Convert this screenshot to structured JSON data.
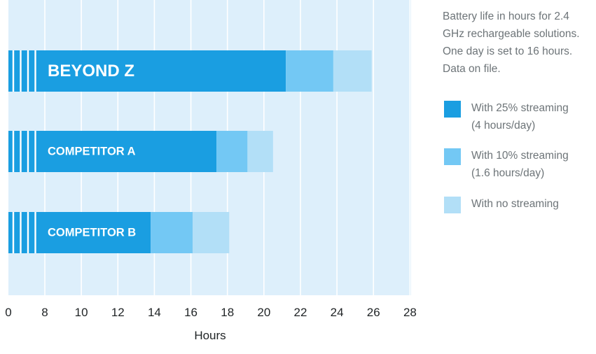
{
  "note": "Battery life in hours for 2.4 GHz rechargeable solutions. One day is set to 16 hours. Data on file.",
  "legend": [
    {
      "label": "With 25% streaming\n(4 hours/day)",
      "color": "#1a9ee1"
    },
    {
      "label": "With 10% streaming\n(1.6 hours/day)",
      "color": "#73c8f4"
    },
    {
      "label": "With no streaming",
      "color": "#b2dff7"
    }
  ],
  "colors": {
    "plot_background": "#ddeffb",
    "gridline": "#ffffff",
    "axis_text": "#1f2325",
    "note_text": "#6d7478",
    "bar_label": "#ffffff"
  },
  "chart_data": {
    "type": "bar",
    "orientation": "horizontal",
    "stacked": true,
    "categories": [
      "BEYOND Z",
      "COMPETITOR A",
      "COMPETITOR B"
    ],
    "series": [
      {
        "name": "With 25% streaming (4 hours/day)",
        "values": [
          21.2,
          17.4,
          13.8
        ]
      },
      {
        "name": "With 10% streaming (1.6 hours/day)",
        "values": [
          2.6,
          1.7,
          2.3
        ]
      },
      {
        "name": "With no streaming",
        "values": [
          2.1,
          1.4,
          2.0
        ]
      }
    ],
    "xlabel": "Hours",
    "xticks": [
      "0",
      "8",
      "10",
      "12",
      "14",
      "16",
      "18",
      "20",
      "22",
      "24",
      "26",
      "28"
    ],
    "xlim": [
      0,
      28
    ],
    "axis_break": {
      "from": 0,
      "to": 6.5,
      "marker_values": [
        0.3,
        1.2,
        2.0,
        2.7
      ]
    },
    "grid": true,
    "legend_position": "right"
  }
}
